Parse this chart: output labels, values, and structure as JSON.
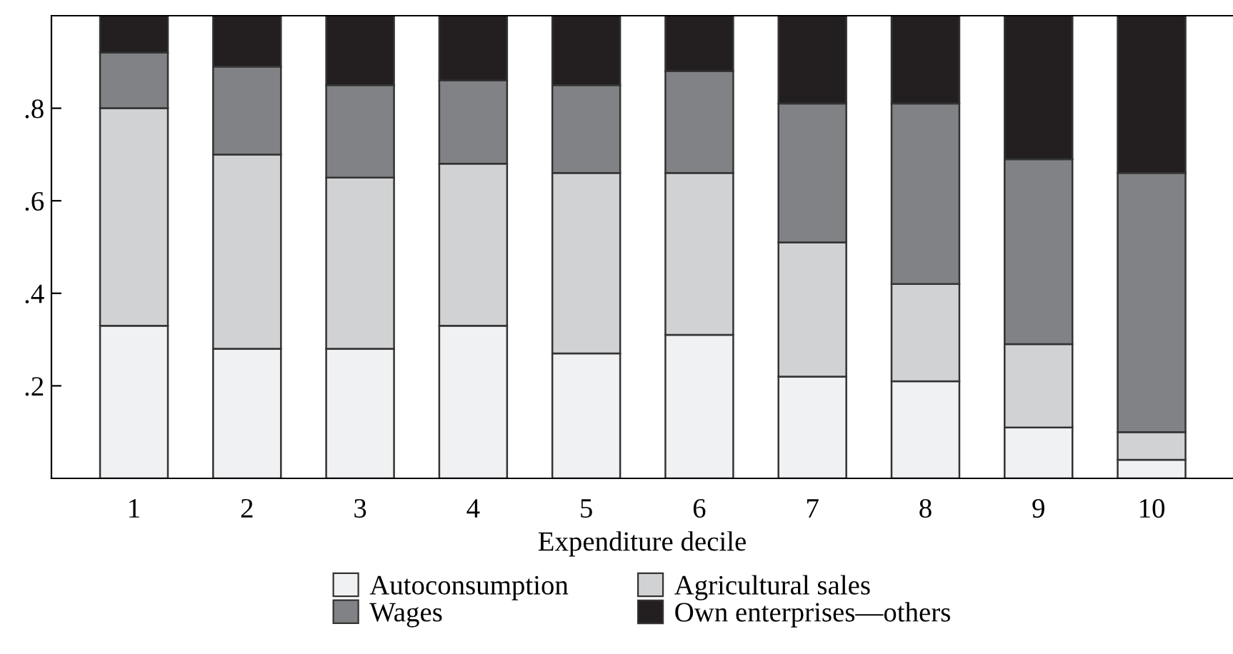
{
  "chart_data": {
    "type": "bar",
    "stacked": true,
    "xlabel": "Expenditure decile",
    "categories": [
      "1",
      "2",
      "3",
      "4",
      "5",
      "6",
      "7",
      "8",
      "9",
      "10"
    ],
    "series": [
      {
        "name": "Autoconsumption",
        "color": "#f0f1f3",
        "values": [
          0.33,
          0.28,
          0.28,
          0.33,
          0.27,
          0.31,
          0.22,
          0.21,
          0.11,
          0.04
        ]
      },
      {
        "name": "Agricultural sales",
        "color": "#d1d2d4",
        "values": [
          0.47,
          0.42,
          0.37,
          0.35,
          0.39,
          0.35,
          0.29,
          0.21,
          0.18,
          0.06
        ]
      },
      {
        "name": "Wages",
        "color": "#808285",
        "values": [
          0.12,
          0.19,
          0.2,
          0.18,
          0.19,
          0.22,
          0.3,
          0.39,
          0.4,
          0.56
        ]
      },
      {
        "name": "Own enterprises—others",
        "color": "#231f20",
        "values": [
          0.08,
          0.11,
          0.15,
          0.14,
          0.15,
          0.12,
          0.19,
          0.19,
          0.31,
          0.34
        ]
      }
    ],
    "ylim": [
      0,
      1
    ],
    "yticks": [
      {
        "value": 0.2,
        "label": ".2"
      },
      {
        "value": 0.4,
        "label": ".4"
      },
      {
        "value": 0.6,
        "label": ".6"
      },
      {
        "value": 0.8,
        "label": ".8"
      }
    ],
    "grid": false,
    "legend": "bottom"
  }
}
